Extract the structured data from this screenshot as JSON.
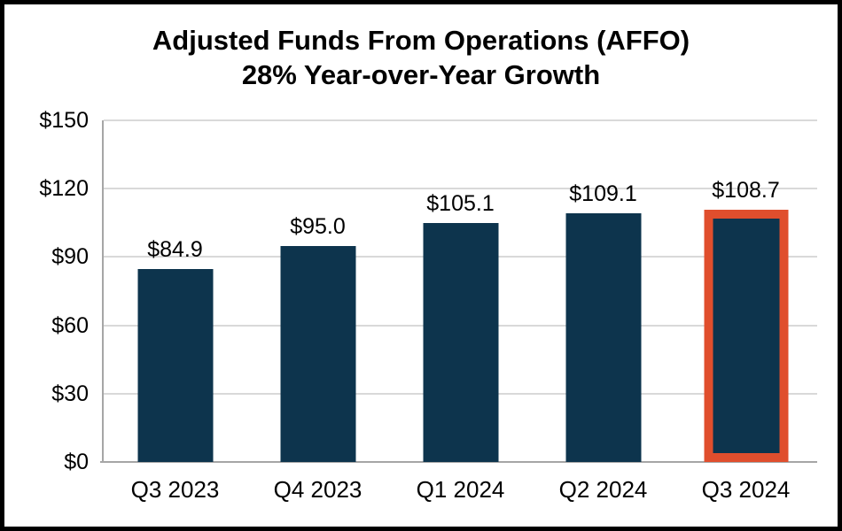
{
  "chart_data": {
    "type": "bar",
    "title_line1": "Adjusted Funds From Operations (AFFO)",
    "title_line2": "28% Year-over-Year Growth",
    "categories": [
      "Q3 2023",
      "Q4 2023",
      "Q1 2024",
      "Q2 2024",
      "Q3 2024"
    ],
    "values": [
      84.9,
      95.0,
      105.1,
      109.1,
      108.7
    ],
    "data_labels": [
      "$84.9",
      "$95.0",
      "$105.1",
      "$109.1",
      "$108.7"
    ],
    "y_tick_labels": [
      "$150",
      "$120",
      "$90",
      "$60",
      "$30",
      "$0"
    ],
    "y_tick_values": [
      150,
      120,
      90,
      60,
      30,
      0
    ],
    "ylim": [
      0,
      150
    ],
    "xlabel": "",
    "ylabel": "",
    "grid": true,
    "legend": "none",
    "highlighted_index": 4,
    "colors": {
      "bar_fill": "#0D344D",
      "highlight_border": "#E04E2D",
      "gridline": "#D9D9D9",
      "axis_line": "#A6A6A6",
      "text": "#000000",
      "frame_border": "#000000",
      "background": "#FFFFFF"
    }
  }
}
